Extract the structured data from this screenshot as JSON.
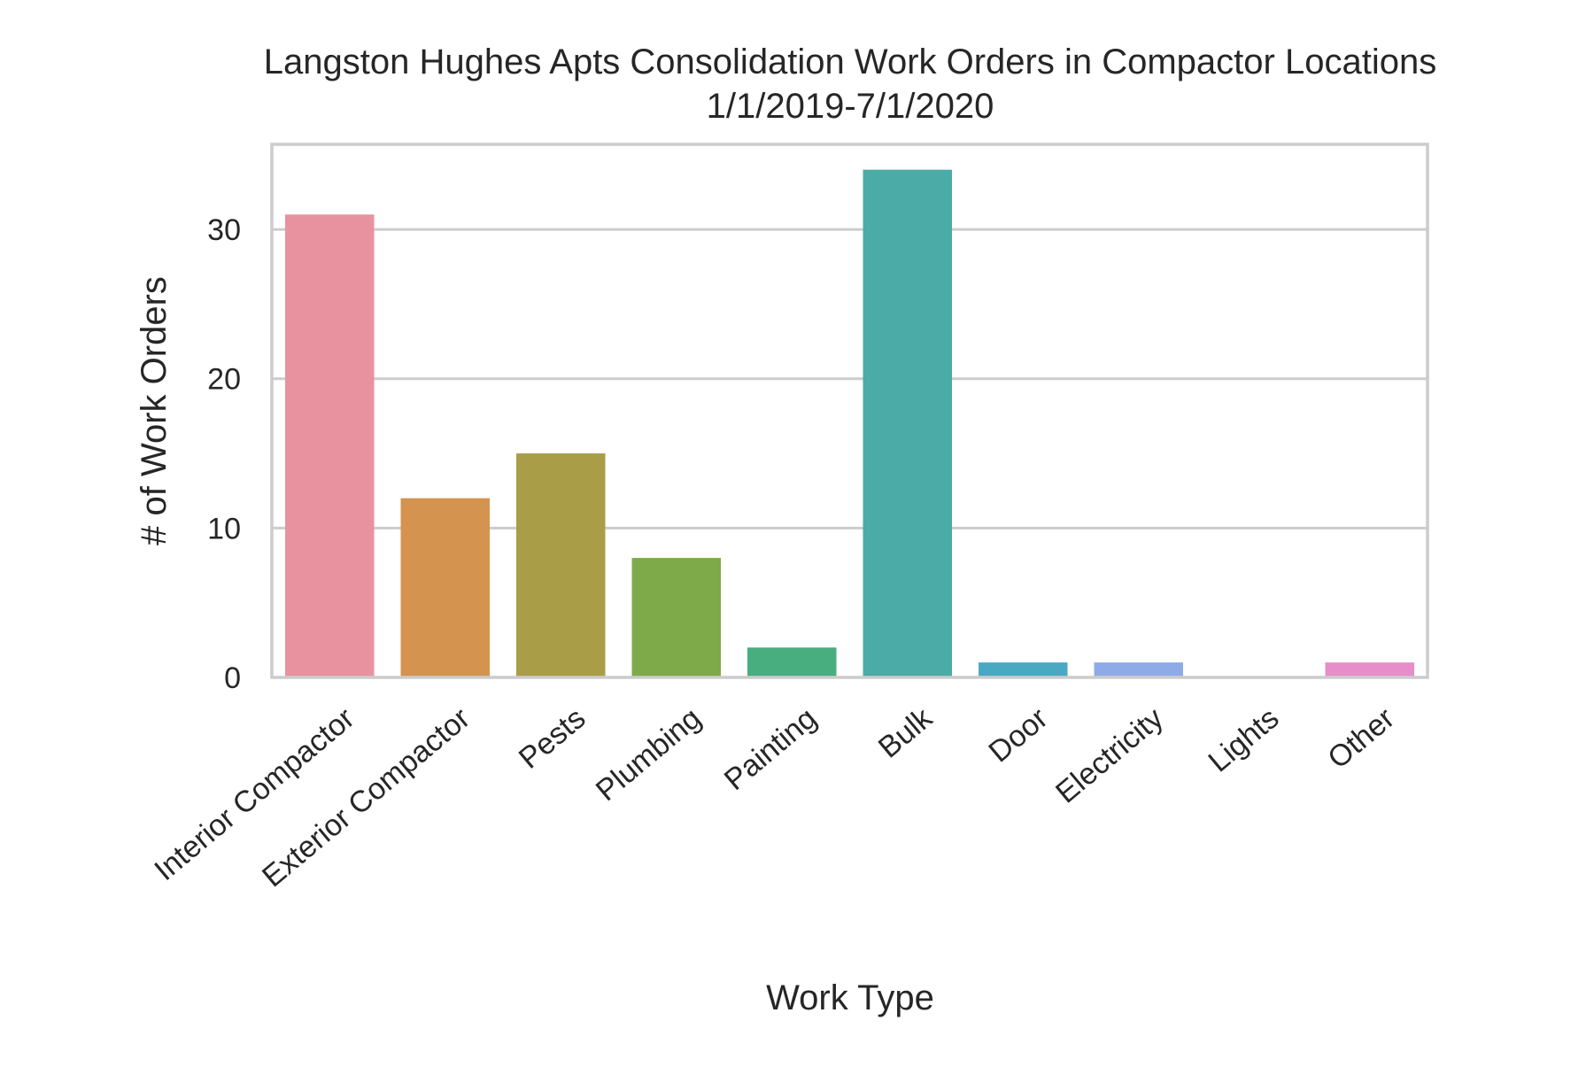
{
  "chart_data": {
    "type": "bar",
    "title": "Langston Hughes Apts Consolidation Work Orders in Compactor Locations",
    "subtitle": "1/1/2019-7/1/2020",
    "xlabel": "Work Type",
    "ylabel": "# of Work Orders",
    "categories": [
      "Interior Compactor",
      "Exterior Compactor",
      "Pests",
      "Plumbing",
      "Painting",
      "Bulk",
      "Door",
      "Electricity",
      "Lights",
      "Other"
    ],
    "values": [
      31,
      12,
      15,
      8,
      2,
      34,
      1,
      1,
      0,
      1
    ],
    "colors": [
      "#e8929f",
      "#d59350",
      "#aa9d47",
      "#7eaa49",
      "#48ad7f",
      "#4aaba7",
      "#4aa9c2",
      "#8eabe8",
      "#c79be8",
      "#e68dca"
    ],
    "ylim": [
      0,
      35.7
    ],
    "yticks": [
      0,
      10,
      20,
      30
    ],
    "grid": true,
    "legend": "none"
  }
}
